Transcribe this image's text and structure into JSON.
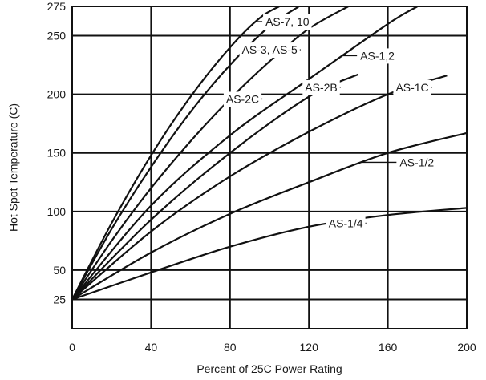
{
  "chart_data": {
    "type": "line",
    "xlabel": "Percent of 25C Power Rating",
    "ylabel": "Hot Spot Temperature (C)",
    "xlim": [
      0,
      200
    ],
    "ylim": [
      0,
      275
    ],
    "xticks": [
      0,
      40,
      80,
      120,
      160,
      200
    ],
    "yticks": [
      25,
      50,
      100,
      150,
      200,
      250,
      275
    ],
    "grid": true,
    "legend": "none (labels placed next to curves)",
    "series": [
      {
        "name": "AS-7, 10",
        "x": [
          0,
          20,
          40,
          60,
          80,
          95,
          105
        ],
        "y": [
          25,
          90,
          148,
          198,
          240,
          265,
          275
        ]
      },
      {
        "name": "AS-3, AS-5",
        "x": [
          0,
          20,
          40,
          60,
          80,
          100,
          115
        ],
        "y": [
          25,
          85,
          138,
          185,
          225,
          258,
          275
        ]
      },
      {
        "name": "AS-2C",
        "x": [
          0,
          20,
          40,
          60,
          80,
          100,
          120,
          140
        ],
        "y": [
          25,
          75,
          120,
          160,
          196,
          228,
          256,
          275
        ]
      },
      {
        "name": "AS-1,2",
        "x": [
          0,
          40,
          80,
          120,
          160,
          175
        ],
        "y": [
          25,
          105,
          165,
          213,
          260,
          275
        ]
      },
      {
        "name": "AS-2B",
        "x": [
          0,
          40,
          80,
          120,
          145
        ],
        "y": [
          25,
          93,
          150,
          198,
          217
        ]
      },
      {
        "name": "AS-1C",
        "x": [
          0,
          40,
          80,
          120,
          160,
          190
        ],
        "y": [
          25,
          83,
          130,
          168,
          200,
          216
        ]
      },
      {
        "name": "AS-1/2",
        "x": [
          0,
          40,
          80,
          120,
          160,
          200
        ],
        "y": [
          25,
          65,
          98,
          125,
          150,
          167
        ]
      },
      {
        "name": "AS-1/4",
        "x": [
          0,
          40,
          80,
          120,
          160,
          200
        ],
        "y": [
          25,
          48,
          70,
          87,
          97,
          103
        ]
      }
    ],
    "labels": [
      {
        "text": "AS-7, 10",
        "series": "AS-7, 10",
        "x": 98,
        "y": 262
      },
      {
        "text": "AS-3, AS-5",
        "series": "AS-3, AS-5",
        "x": 86,
        "y": 238
      },
      {
        "text": "AS-2C",
        "series": "AS-2C",
        "x": 78,
        "y": 196
      },
      {
        "text": "AS-1,2",
        "series": "AS-1,2",
        "x": 146,
        "y": 233
      },
      {
        "text": "AS-2B",
        "series": "AS-2B",
        "x": 118,
        "y": 206
      },
      {
        "text": "AS-1C",
        "series": "AS-1C",
        "x": 164,
        "y": 206
      },
      {
        "text": "AS-1/2",
        "series": "AS-1/2",
        "x": 166,
        "y": 142
      },
      {
        "text": "AS-1/4",
        "series": "AS-1/4",
        "x": 130,
        "y": 90
      }
    ]
  }
}
